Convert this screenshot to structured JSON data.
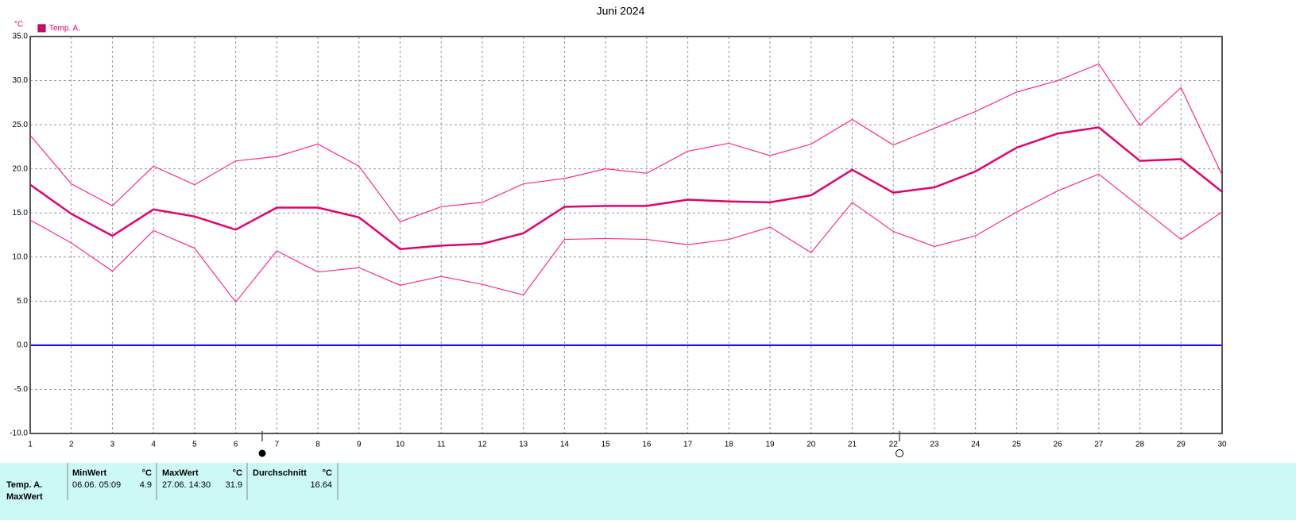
{
  "chart_data": {
    "type": "line",
    "title": "Juni 2024",
    "y_unit": "°C",
    "x": [
      1,
      2,
      3,
      4,
      5,
      6,
      7,
      8,
      9,
      10,
      11,
      12,
      13,
      14,
      15,
      16,
      17,
      18,
      19,
      20,
      21,
      22,
      23,
      24,
      25,
      26,
      27,
      28,
      29,
      30
    ],
    "xlim": [
      1,
      30
    ],
    "xticks": [
      1,
      2,
      3,
      4,
      5,
      6,
      7,
      8,
      9,
      10,
      11,
      12,
      13,
      14,
      15,
      16,
      17,
      18,
      19,
      20,
      21,
      22,
      23,
      24,
      25,
      26,
      27,
      28,
      29,
      30
    ],
    "ylim": [
      -10,
      35
    ],
    "yticks": [
      {
        "value": -10,
        "label": "-10.0"
      },
      {
        "value": -5,
        "label": "-5.0"
      },
      {
        "value": 0,
        "label": "0.0"
      },
      {
        "value": 5,
        "label": "5.0"
      },
      {
        "value": 10,
        "label": "10.0"
      },
      {
        "value": 15,
        "label": "15.0"
      },
      {
        "value": 20,
        "label": "20.0"
      },
      {
        "value": 25,
        "label": "25.0"
      },
      {
        "value": 30,
        "label": "30.0"
      },
      {
        "value": 35,
        "label": "35.0"
      }
    ],
    "grid": true,
    "zero_line_color": "#0000e0",
    "series": [
      {
        "name": "Temp. A.",
        "color": "#e6006e",
        "values": [
          18.2,
          14.9,
          12.4,
          15.4,
          14.6,
          13.1,
          15.6,
          15.6,
          14.5,
          10.9,
          11.3,
          11.5,
          12.7,
          15.7,
          15.8,
          15.8,
          16.5,
          16.3,
          16.2,
          17.0,
          19.9,
          17.3,
          17.9,
          19.7,
          22.4,
          24.0,
          24.7,
          20.9,
          21.1,
          17.4
        ]
      },
      {
        "color": "#ff2a8a",
        "values": [
          23.8,
          18.3,
          15.8,
          20.3,
          18.2,
          20.9,
          21.4,
          22.8,
          20.3,
          14.0,
          15.7,
          16.2,
          18.3,
          18.9,
          20.0,
          19.5,
          22.0,
          22.9,
          21.5,
          22.8,
          25.6,
          22.7,
          24.6,
          26.5,
          28.7,
          30.0,
          31.9,
          24.9,
          29.2,
          19.3
        ]
      },
      {
        "color": "#ff2a8a",
        "values": [
          14.2,
          11.6,
          8.4,
          13.0,
          11.0,
          4.9,
          10.7,
          8.3,
          8.8,
          6.8,
          7.8,
          6.9,
          5.7,
          12.0,
          12.1,
          12.0,
          11.4,
          12.0,
          13.4,
          10.5,
          16.2,
          12.9,
          11.2,
          12.4,
          15.1,
          17.5,
          19.4,
          15.7,
          12.0,
          15.1
        ]
      }
    ]
  },
  "table": {
    "row_labels": [
      "Temp. A.",
      "MaxWert"
    ],
    "columns": [
      {
        "header": "MinWert",
        "unit": "°C",
        "time": "06.06.  05:09",
        "value": "4.9"
      },
      {
        "header": "MaxWert",
        "unit": "°C",
        "time": "27.06.  14:30",
        "value": "31.9"
      },
      {
        "header": "Durchschnitt",
        "unit": "°C",
        "value": "16.64"
      }
    ]
  }
}
